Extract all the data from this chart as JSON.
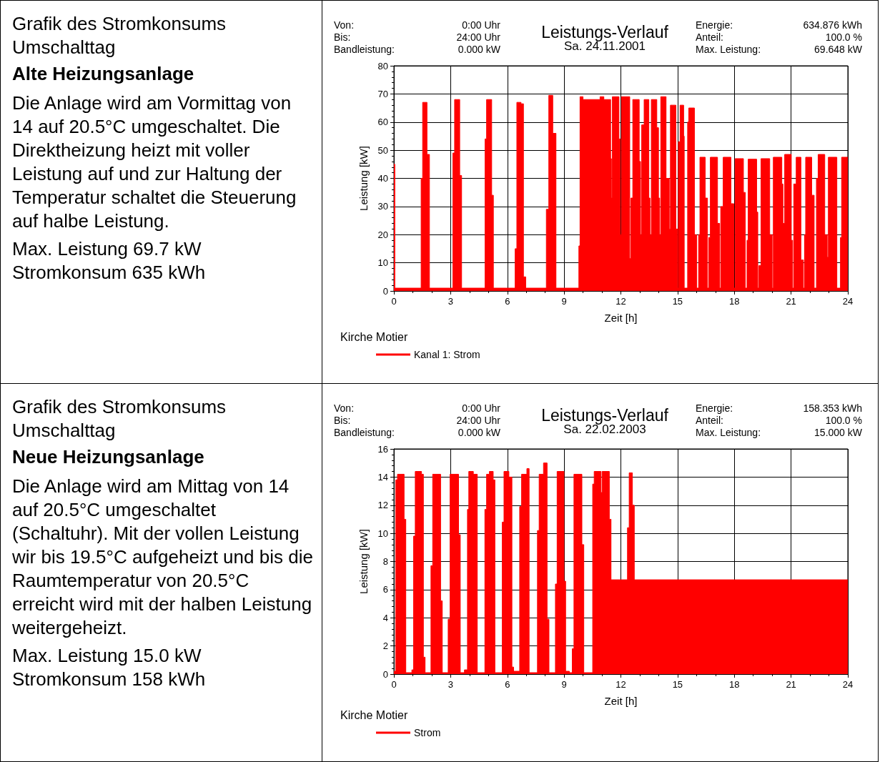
{
  "chart_data": [
    {
      "type": "area",
      "title": "Leistungs-Verlauf",
      "subtitle": "Sa. 24.11.2001",
      "xlabel": "Zeit [h]",
      "ylabel": "Leistung [kW]",
      "legend_title": "Kirche Motier",
      "annotations": [
        "Von:",
        "0:00 Uhr",
        "Bis:",
        "24:00 Uhr",
        "Bandleistung:",
        "0.000 kW",
        "Energie:",
        "634.876 kWh",
        "Anteil:",
        "100.0 %",
        "Max. Leistung:",
        "69.648 kW",
        "Grafik des Stromkonsums Umschalttag",
        "Alte Heizungsanlage",
        "Die Anlage wird am Vormittag von 14 auf 20.5°C umgeschaltet. Die Direktheizung heizt mit voller Leistung auf und zur Haltung der Temperatur schaltet die Steuerung auf halbe Leistung.",
        "Max. Leistung 69.7 kW",
        "Stromkonsum 635 kWh"
      ],
      "xlim": [
        0,
        24
      ],
      "xticks": [
        0,
        3,
        6,
        9,
        12,
        15,
        18,
        21,
        24
      ],
      "ylim": [
        0,
        80
      ],
      "yticks": [
        0,
        10,
        20,
        30,
        40,
        50,
        60,
        70,
        80
      ],
      "grid": true,
      "legend": "bottom left",
      "marker": "none",
      "line_style": "solid",
      "series": [
        {
          "name": "Kanal 1: Strom",
          "color": "#ff0000",
          "x": [
            0,
            0.05,
            0.05,
            1.44,
            1.44,
            1.52,
            1.52,
            1.75,
            1.75,
            1.88,
            1.88,
            3.12,
            3.12,
            3.21,
            3.21,
            3.48,
            3.48,
            3.58,
            3.58,
            4.82,
            4.82,
            4.9,
            4.9,
            5.17,
            5.17,
            5.26,
            5.26,
            6.41,
            6.41,
            6.5,
            6.5,
            6.72,
            6.72,
            6.85,
            6.85,
            6.97,
            6.97,
            8.06,
            8.06,
            8.19,
            8.19,
            8.4,
            8.4,
            8.57,
            8.57,
            9.78,
            9.78,
            9.84,
            9.84,
            10,
            10,
            10.9,
            10.9,
            11.1,
            11.1,
            11.46,
            11.46,
            11.5,
            11.5,
            11.55,
            11.55,
            11.9,
            11.9,
            11.97,
            11.97,
            12.03,
            12.03,
            12.47,
            12.47,
            12.53,
            12.53,
            12.63,
            12.63,
            12.97,
            12.97,
            13.04,
            13.04,
            13.1,
            13.1,
            13.23,
            13.23,
            13.48,
            13.48,
            13.54,
            13.54,
            13.61,
            13.61,
            13.9,
            13.9,
            13.99,
            13.99,
            14.05,
            14.05,
            14.11,
            14.11,
            14.39,
            14.39,
            14.56,
            14.56,
            14.62,
            14.62,
            14.91,
            14.91,
            15,
            15,
            15.04,
            15.04,
            15.13,
            15.13,
            15.32,
            15.32,
            15.35,
            15.35,
            15.53,
            15.53,
            15.59,
            15.59,
            15.89,
            15.89,
            16.01,
            16.01,
            16.11,
            16.11,
            16.18,
            16.18,
            16.46,
            16.46,
            16.58,
            16.58,
            16.65,
            16.65,
            16.73,
            16.73,
            17.11,
            17.11,
            17.22,
            17.22,
            17.28,
            17.28,
            17.41,
            17.41,
            17.82,
            17.82,
            17.97,
            17.97,
            18.04,
            18.04,
            18.48,
            18.48,
            18.58,
            18.58,
            18.67,
            18.67,
            18.73,
            18.73,
            19.18,
            19.18,
            19.24,
            19.24,
            19.3,
            19.3,
            19.41,
            19.41,
            19.87,
            19.87,
            20,
            20,
            20.06,
            20.06,
            20.51,
            20.51,
            20.57,
            20.57,
            20.66,
            20.66,
            21.01,
            21.01,
            21.08,
            21.08,
            21.14,
            21.14,
            21.27,
            21.27,
            21.52,
            21.52,
            21.65,
            21.65,
            21.71,
            21.71,
            21.77,
            21.77,
            22.09,
            22.09,
            22.22,
            22.22,
            22.34,
            22.34,
            22.43,
            22.43,
            22.78,
            22.78,
            22.91,
            22.91,
            22.97,
            22.97,
            23.42,
            23.42,
            23.61,
            23.61,
            23.67,
            23.67,
            24
          ],
          "values": [
            45,
            45,
            1,
            1,
            40,
            40,
            67,
            67,
            48.5,
            48.5,
            1,
            1,
            49,
            49,
            68,
            68,
            41,
            41,
            1,
            1,
            54,
            54,
            68,
            68,
            34,
            34,
            1,
            1,
            15,
            15,
            67,
            67,
            66.5,
            66.5,
            5,
            5,
            1,
            1,
            29,
            29,
            69.5,
            69.5,
            56,
            56,
            1,
            1,
            16,
            16,
            69,
            69,
            68,
            68,
            69,
            69,
            68,
            68,
            47,
            47,
            33,
            33,
            69,
            69,
            54,
            54,
            20,
            20,
            69,
            69,
            11.5,
            11.5,
            33,
            33,
            68,
            68,
            46,
            46,
            20,
            20,
            59,
            59,
            68,
            68,
            33,
            33,
            20,
            20,
            68,
            68,
            58,
            58,
            33,
            33,
            20,
            20,
            69,
            69,
            40,
            40,
            22,
            22,
            66,
            66,
            22,
            22,
            1,
            1,
            53,
            53,
            66,
            66,
            55,
            55,
            1,
            1,
            60,
            60,
            65,
            65,
            20,
            20,
            1,
            1,
            20,
            20,
            47.5,
            47.5,
            33,
            33,
            1,
            1,
            19,
            19,
            47.5,
            47.5,
            24,
            24,
            1,
            1,
            30,
            30,
            47.5,
            47.5,
            31,
            31,
            1,
            1,
            47,
            47,
            35,
            35,
            1,
            1,
            18,
            18,
            46.8,
            46.8,
            28,
            28,
            1,
            1,
            9,
            9,
            47,
            47,
            20,
            20,
            1,
            1,
            47.5,
            47.5,
            38,
            38,
            24,
            24,
            48.5,
            48.5,
            18,
            18,
            1,
            1,
            38,
            38,
            47.5,
            47.5,
            11,
            11,
            1,
            1,
            20,
            20,
            47.5,
            47.5,
            34,
            34,
            1,
            1,
            40,
            40,
            48.5,
            48.5,
            20,
            20,
            12,
            12,
            47.5,
            47.5,
            1,
            1,
            19,
            19,
            47.5,
            47.5
          ]
        }
      ]
    },
    {
      "type": "area",
      "title": "Leistungs-Verlauf",
      "subtitle": "Sa. 22.02.2003",
      "xlabel": "Zeit [h]",
      "ylabel": "Leistung [kW]",
      "legend_title": "Kirche Motier",
      "annotations": [
        "Von:",
        "0:00 Uhr",
        "Bis:",
        "24:00 Uhr",
        "Bandleistung:",
        "0.000 kW",
        "Energie:",
        "158.353 kWh",
        "Anteil:",
        "100.0 %",
        "Max. Leistung:",
        "15.000 kW",
        "Grafik des Stromkonsums Umschalttag",
        "Neue Heizungsanlage",
        "Die Anlage wird am Mittag von 14 auf 20.5°C umgeschaltet (Schaltuhr). Mit der vollen Leistung wir bis 19.5°C aufgeheizt und bis die Raumtemperatur von 20.5°C erreicht wird mit der halben Leistung weitergeheizt.",
        "Max. Leistung 15.0 kW",
        "Stromkonsum 158 kWh"
      ],
      "xlim": [
        0,
        24
      ],
      "xticks": [
        0,
        3,
        6,
        9,
        12,
        15,
        18,
        21,
        24
      ],
      "ylim": [
        0,
        16
      ],
      "yticks": [
        0,
        2,
        4,
        6,
        8,
        10,
        12,
        14,
        16
      ],
      "grid": true,
      "legend": "bottom left",
      "marker": "none",
      "line_style": "solid",
      "series": [
        {
          "name": "Strom",
          "color": "#ff0000",
          "x": [
            0,
            0.1,
            0.1,
            0.19,
            0.19,
            0.54,
            0.54,
            0.63,
            0.63,
            0.95,
            0.95,
            1.04,
            1.04,
            1.13,
            1.13,
            1.46,
            1.46,
            1.56,
            1.56,
            1.65,
            1.65,
            1.96,
            1.96,
            2.05,
            2.05,
            2.47,
            2.47,
            2.56,
            2.56,
            2.87,
            2.87,
            2.97,
            2.97,
            3.42,
            3.42,
            3.51,
            3.51,
            3.73,
            3.73,
            3.89,
            3.89,
            3.96,
            3.96,
            4.2,
            4.2,
            4.41,
            4.41,
            4.81,
            4.81,
            4.9,
            4.9,
            5.05,
            5.05,
            5.25,
            5.25,
            5.34,
            5.34,
            5.73,
            5.73,
            5.82,
            5.82,
            6.08,
            6.08,
            6.24,
            6.24,
            6.33,
            6.33,
            6.65,
            6.65,
            6.75,
            6.75,
            7.03,
            7.03,
            7.15,
            7.15,
            7.59,
            7.59,
            7.68,
            7.68,
            7.91,
            7.91,
            8.1,
            8.1,
            8.2,
            8.2,
            8.54,
            8.54,
            8.63,
            8.63,
            8.99,
            8.99,
            9.08,
            9.08,
            9.28,
            9.28,
            9.43,
            9.43,
            9.52,
            9.52,
            9.94,
            9.94,
            10.04,
            10.04,
            10.51,
            10.51,
            10.59,
            10.59,
            10.95,
            10.95,
            11.01,
            11.01,
            11.39,
            11.39,
            11.48,
            11.48,
            12.35,
            12.35,
            12.44,
            12.44,
            12.61,
            12.61,
            12.71,
            12.71,
            24
          ],
          "values": [
            0.2,
            0.2,
            13.8,
            13.8,
            14.2,
            14.2,
            11,
            11,
            0.1,
            0.1,
            0.3,
            0.3,
            9.8,
            9.8,
            14.4,
            14.4,
            14.2,
            14.2,
            1.2,
            1.2,
            0.1,
            0.1,
            7.7,
            7.7,
            14.2,
            14.2,
            5.2,
            5.2,
            0.1,
            0.1,
            3.9,
            3.9,
            14.2,
            14.2,
            9.9,
            9.9,
            0.1,
            0.1,
            0.3,
            0.3,
            11.7,
            11.7,
            14.4,
            14.4,
            14.2,
            14.2,
            0.1,
            0.1,
            11.7,
            11.7,
            14.2,
            14.2,
            14.4,
            14.4,
            13.8,
            13.8,
            0.1,
            0.1,
            10.8,
            10.8,
            14.4,
            14.4,
            14,
            14,
            0.5,
            0.5,
            0.2,
            0.2,
            11.9,
            11.9,
            14.2,
            14.2,
            14.6,
            14.6,
            0.1,
            0.1,
            10.2,
            10.2,
            14.2,
            14.2,
            15,
            15,
            3.9,
            3.9,
            0.1,
            0.1,
            6.4,
            6.4,
            14.4,
            14.4,
            6.6,
            6.6,
            0.2,
            0.2,
            0.1,
            0.1,
            1.8,
            1.8,
            14.2,
            14.2,
            9.2,
            9.2,
            0.1,
            0.1,
            13.5,
            13.5,
            14.4,
            14.4,
            12.9,
            12.9,
            14.4,
            14.4,
            11,
            11,
            6.7,
            6.7,
            10.4,
            10.4,
            14.3,
            14.3,
            12,
            12,
            6.7,
            6.7
          ]
        }
      ]
    }
  ]
}
